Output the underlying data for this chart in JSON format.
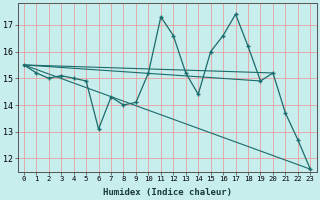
{
  "xlabel": "Humidex (Indice chaleur)",
  "bg_color": "#c8eded",
  "line_color": "#1a6b6b",
  "grid_color": "#e8a0a0",
  "x_values": [
    0,
    1,
    2,
    3,
    4,
    5,
    6,
    7,
    8,
    9,
    10,
    11,
    12,
    13,
    14,
    15,
    16,
    17,
    18,
    19,
    20,
    21,
    22,
    23
  ],
  "y_main": [
    15.5,
    15.2,
    15.0,
    15.1,
    15.0,
    14.9,
    13.1,
    14.3,
    14.0,
    14.1,
    15.2,
    17.3,
    16.6,
    15.2,
    14.4,
    16.0,
    16.6,
    17.4,
    16.2,
    14.9,
    15.2,
    13.7,
    12.7,
    11.6
  ],
  "ylim": [
    11.5,
    17.8
  ],
  "xlim": [
    -0.5,
    23.5
  ],
  "yticks": [
    12,
    13,
    14,
    15,
    16,
    17
  ],
  "xticks": [
    0,
    1,
    2,
    3,
    4,
    5,
    6,
    7,
    8,
    9,
    10,
    11,
    12,
    13,
    14,
    15,
    16,
    17,
    18,
    19,
    20,
    21,
    22,
    23
  ],
  "line1_x": [
    0,
    20
  ],
  "line1_y": [
    15.5,
    15.2
  ],
  "line2_x": [
    0,
    19
  ],
  "line2_y": [
    15.5,
    14.9
  ],
  "line3_x": [
    0,
    23
  ],
  "line3_y": [
    15.5,
    11.6
  ]
}
